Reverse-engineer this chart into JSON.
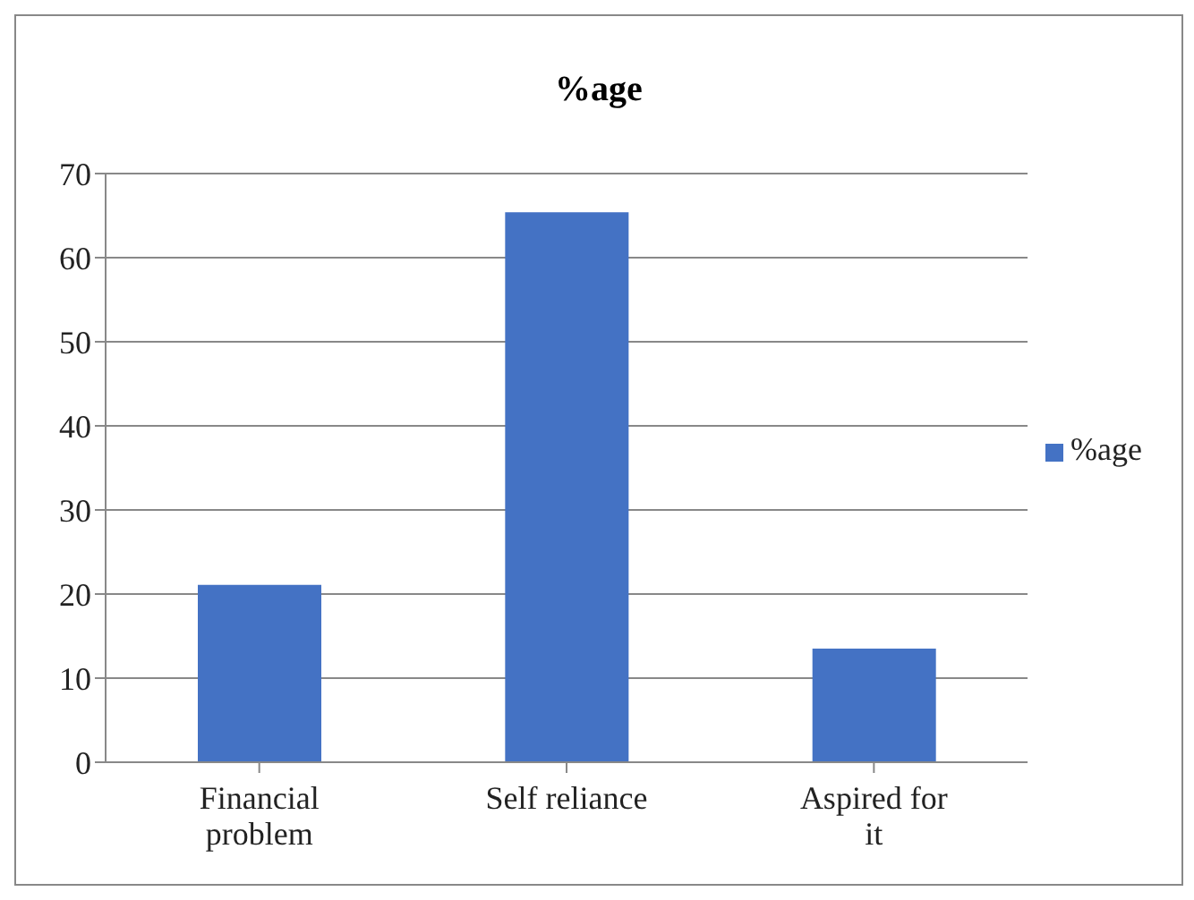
{
  "chart_data": {
    "type": "bar",
    "title": "%age",
    "categories": [
      "Financial problem",
      "Self reliance",
      "Aspired for it"
    ],
    "series": [
      {
        "name": "%age",
        "color": "#4472c4",
        "values": [
          21.1,
          65.4,
          13.5
        ]
      }
    ],
    "ylim": [
      0,
      70
    ],
    "yticks": [
      0,
      10,
      20,
      30,
      40,
      50,
      60,
      70
    ],
    "grid": "y",
    "legend": "right"
  }
}
